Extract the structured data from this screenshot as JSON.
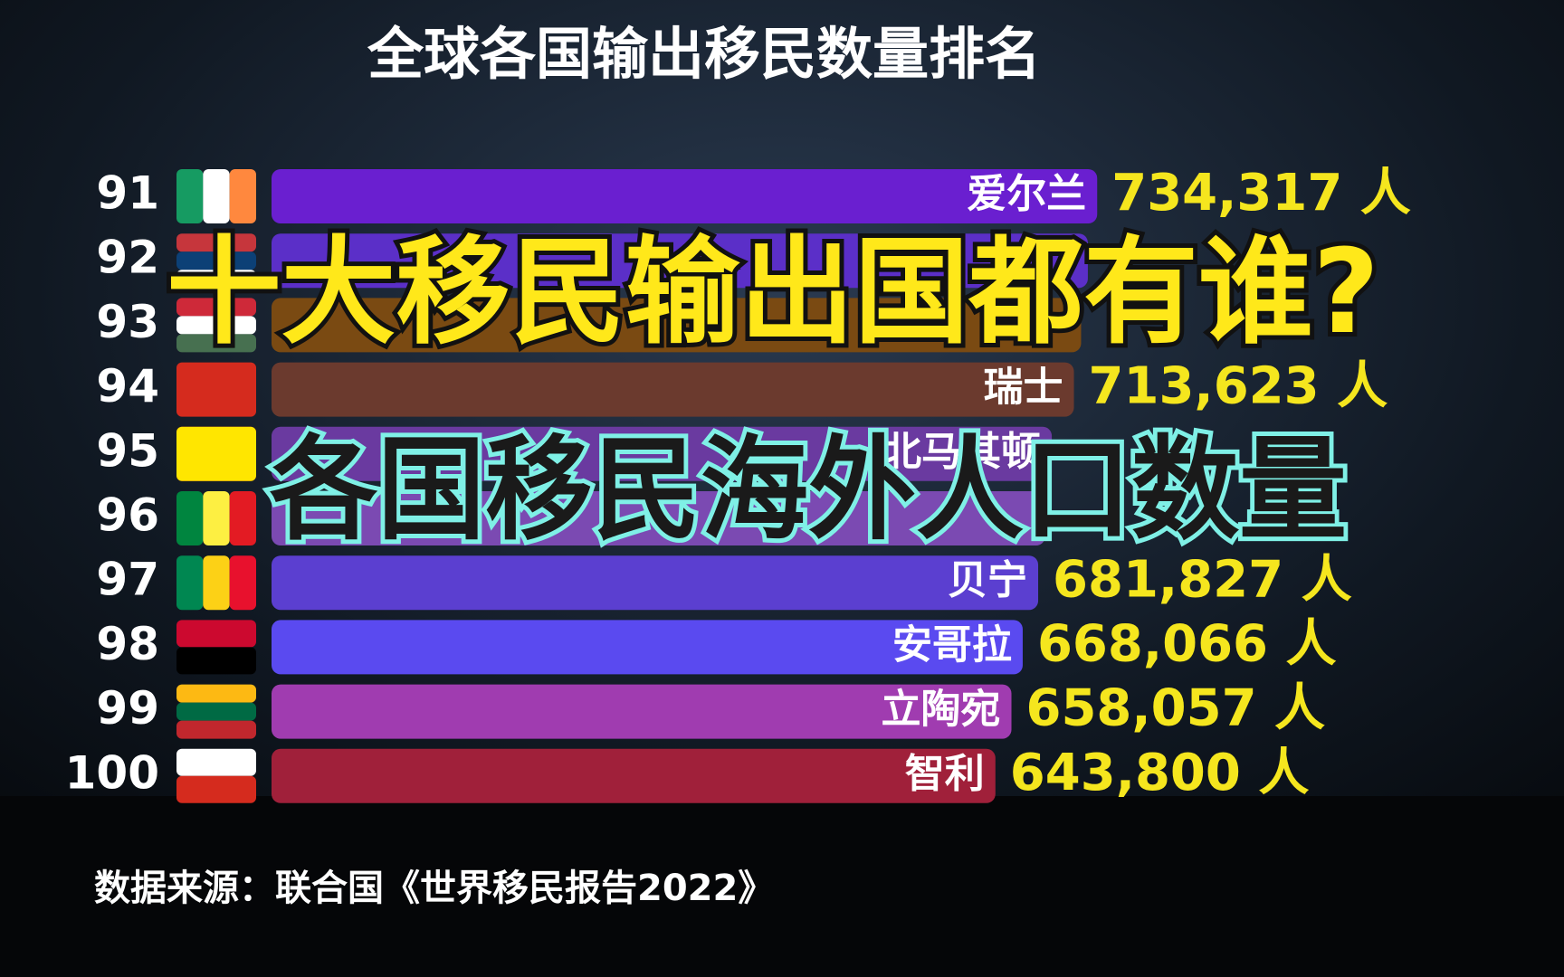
{
  "chart_data": {
    "type": "bar",
    "title": "全球各国输出移民数量排名",
    "ranks": [
      91,
      92,
      93,
      94,
      95,
      96,
      97,
      98,
      99,
      100
    ],
    "categories": [
      "爱尔兰",
      null,
      null,
      "瑞士",
      "北马其顿",
      null,
      "贝宁",
      "安哥拉",
      "立陶宛",
      "智利"
    ],
    "values": [
      734317,
      726000,
      720000,
      713623,
      693926,
      688000,
      681827,
      668066,
      658057,
      643800
    ],
    "value_labels": [
      "734,317 人",
      null,
      null,
      "713,623 人",
      null,
      null,
      "681,827 人",
      "668,066 人",
      "658,057 人",
      "643,800 人"
    ],
    "colors": [
      "#6a1fd0",
      "#5b2fc8",
      "#7a4a12",
      "#6b3a2e",
      "#6a3aa0",
      "#7b4ab2",
      "#5b3fd0",
      "#5a4af0",
      "#a03cb0",
      "#a0203a"
    ],
    "xlim": [
      0,
      780000
    ],
    "headline": "十大移民输出国都有谁?",
    "subheadline": "各国移民海外人口数量",
    "source": "数据来源：联合国《世界移民报告2022》"
  }
}
